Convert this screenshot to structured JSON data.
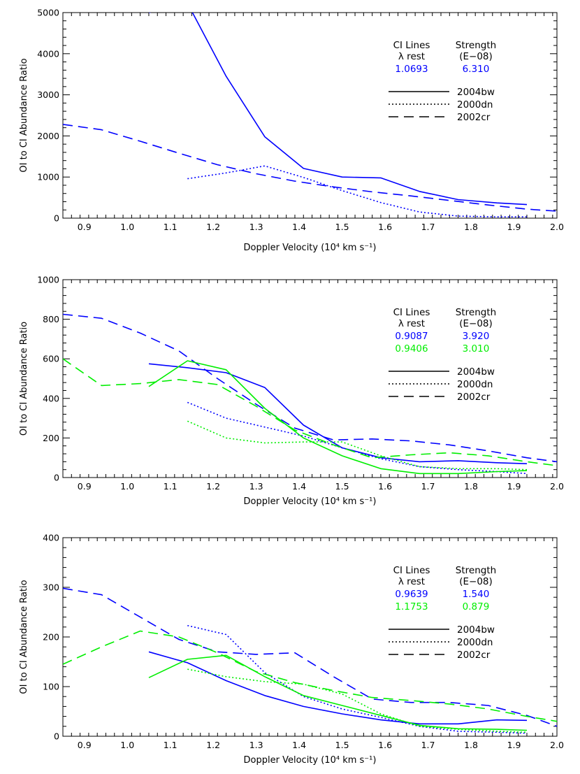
{
  "chart_data": [
    {
      "type": "line",
      "xlabel": "Doppler Velocity (10⁴ km s⁻¹)",
      "ylabel": "OI to CI Abundance Ratio",
      "xlim": [
        0.85,
        2.0
      ],
      "ylim": [
        0,
        5000
      ],
      "xticks": [
        "0.9",
        "1.0",
        "1.1",
        "1.2",
        "1.3",
        "1.4",
        "1.5",
        "1.6",
        "1.7",
        "1.8",
        "1.9",
        "2.0"
      ],
      "yticks": [
        "0",
        "1000",
        "2000",
        "3000",
        "4000",
        "5000"
      ],
      "legend": {
        "header": [
          "CI Lines",
          "Strength"
        ],
        "subheader": [
          "λ rest",
          "(E−08)"
        ],
        "lines": [
          {
            "wavelength": "1.0693",
            "strength": "6.310",
            "color": "#0000ff"
          }
        ],
        "styles": [
          {
            "label": "2004bw",
            "dash": "solid"
          },
          {
            "label": "2000dn",
            "dash": "dotted"
          },
          {
            "label": "2002cr",
            "dash": "dashed"
          }
        ]
      },
      "series": [
        {
          "color": "#0000ff",
          "dash": "solid",
          "x": [
            1.05,
            1.14,
            1.23,
            1.32,
            1.41,
            1.5,
            1.59,
            1.68,
            1.77,
            1.86,
            1.93
          ],
          "y": [
            5000,
            5230,
            3450,
            1980,
            1210,
            1000,
            980,
            650,
            450,
            370,
            330
          ]
        },
        {
          "color": "#0000ff",
          "dash": "dotted",
          "x": [
            1.14,
            1.23,
            1.32,
            1.41,
            1.5,
            1.59,
            1.68,
            1.77,
            1.86,
            1.93
          ],
          "y": [
            960,
            1100,
            1270,
            990,
            670,
            380,
            150,
            50,
            30,
            30
          ]
        },
        {
          "color": "#0000ff",
          "dash": "dashed",
          "x": [
            0.85,
            0.94,
            1.03,
            1.12,
            1.21,
            1.3,
            1.39,
            1.48,
            1.57,
            1.66,
            1.75,
            1.84,
            1.93,
            2.0
          ],
          "y": [
            2280,
            2150,
            1870,
            1580,
            1300,
            1080,
            900,
            760,
            640,
            540,
            430,
            320,
            220,
            170
          ]
        }
      ]
    },
    {
      "type": "line",
      "xlabel": "Doppler Velocity (10⁴ km s⁻¹)",
      "ylabel": "OI to CI Abundance Ratio",
      "xlim": [
        0.85,
        2.0
      ],
      "ylim": [
        0,
        1000
      ],
      "xticks": [
        "0.9",
        "1.0",
        "1.1",
        "1.2",
        "1.3",
        "1.4",
        "1.5",
        "1.6",
        "1.7",
        "1.8",
        "1.9",
        "2.0"
      ],
      "yticks": [
        "0",
        "200",
        "400",
        "600",
        "800",
        "1000"
      ],
      "legend": {
        "header": [
          "CI Lines",
          "Strength"
        ],
        "subheader": [
          "λ rest",
          "(E−08)"
        ],
        "lines": [
          {
            "wavelength": "0.9087",
            "strength": "3.920",
            "color": "#0000ff"
          },
          {
            "wavelength": "0.9406",
            "strength": "3.010",
            "color": "#00ee00"
          }
        ],
        "styles": [
          {
            "label": "2004bw",
            "dash": "solid"
          },
          {
            "label": "2000dn",
            "dash": "dotted"
          },
          {
            "label": "2002cr",
            "dash": "dashed"
          }
        ]
      },
      "series": [
        {
          "color": "#0000ff",
          "dash": "solid",
          "x": [
            1.05,
            1.14,
            1.23,
            1.32,
            1.41,
            1.5,
            1.59,
            1.68,
            1.77,
            1.86,
            1.93
          ],
          "y": [
            575,
            555,
            530,
            455,
            265,
            150,
            100,
            80,
            85,
            75,
            70
          ]
        },
        {
          "color": "#0000ff",
          "dash": "dotted",
          "x": [
            1.14,
            1.23,
            1.32,
            1.41,
            1.5,
            1.59,
            1.68,
            1.77,
            1.86,
            1.93
          ],
          "y": [
            380,
            300,
            255,
            210,
            150,
            95,
            55,
            40,
            30,
            20
          ]
        },
        {
          "color": "#0000ff",
          "dash": "dashed",
          "x": [
            0.85,
            0.94,
            1.03,
            1.12,
            1.21,
            1.3,
            1.39,
            1.48,
            1.57,
            1.66,
            1.75,
            1.84,
            1.93,
            2.0
          ],
          "y": [
            825,
            805,
            730,
            640,
            500,
            370,
            250,
            190,
            195,
            185,
            165,
            135,
            100,
            80
          ]
        },
        {
          "color": "#00ee00",
          "dash": "solid",
          "x": [
            1.05,
            1.14,
            1.23,
            1.32,
            1.41,
            1.5,
            1.59,
            1.68,
            1.77,
            1.86,
            1.93
          ],
          "y": [
            460,
            590,
            545,
            350,
            200,
            110,
            45,
            20,
            20,
            30,
            35
          ]
        },
        {
          "color": "#00ee00",
          "dash": "dotted",
          "x": [
            1.14,
            1.23,
            1.32,
            1.41,
            1.5,
            1.59,
            1.68,
            1.77,
            1.86,
            1.93
          ],
          "y": [
            285,
            200,
            175,
            180,
            180,
            110,
            55,
            45,
            45,
            40
          ]
        },
        {
          "color": "#00ee00",
          "dash": "dashed",
          "x": [
            0.85,
            0.94,
            1.03,
            1.12,
            1.21,
            1.3,
            1.39,
            1.48,
            1.57,
            1.66,
            1.75,
            1.84,
            1.93,
            2.0
          ],
          "y": [
            600,
            465,
            475,
            495,
            470,
            360,
            240,
            165,
            100,
            115,
            125,
            110,
            80,
            60
          ]
        }
      ]
    },
    {
      "type": "line",
      "xlabel": "Doppler Velocity (10⁴ km s⁻¹)",
      "ylabel": "OI to CI Abundance Ratio",
      "xlim": [
        0.85,
        2.0
      ],
      "ylim": [
        0,
        400
      ],
      "xticks": [
        "0.9",
        "1.0",
        "1.1",
        "1.2",
        "1.3",
        "1.4",
        "1.5",
        "1.6",
        "1.7",
        "1.8",
        "1.9",
        "2.0"
      ],
      "yticks": [
        "0",
        "100",
        "200",
        "300",
        "400"
      ],
      "legend": {
        "header": [
          "CI Lines",
          "Strength"
        ],
        "subheader": [
          "λ rest",
          "(E−08)"
        ],
        "lines": [
          {
            "wavelength": "0.9639",
            "strength": "1.540",
            "color": "#0000ff"
          },
          {
            "wavelength": "1.1753",
            "strength": "0.879",
            "color": "#00ee00"
          }
        ],
        "styles": [
          {
            "label": "2004bw",
            "dash": "solid"
          },
          {
            "label": "2000dn",
            "dash": "dotted"
          },
          {
            "label": "2002cr",
            "dash": "dashed"
          }
        ]
      },
      "series": [
        {
          "color": "#0000ff",
          "dash": "solid",
          "x": [
            1.05,
            1.14,
            1.23,
            1.32,
            1.41,
            1.5,
            1.59,
            1.68,
            1.77,
            1.86,
            1.93
          ],
          "y": [
            170,
            148,
            112,
            82,
            60,
            45,
            33,
            25,
            25,
            33,
            32
          ]
        },
        {
          "color": "#0000ff",
          "dash": "dotted",
          "x": [
            1.14,
            1.23,
            1.32,
            1.41,
            1.5,
            1.59,
            1.68,
            1.77,
            1.86,
            1.93
          ],
          "y": [
            223,
            205,
            128,
            80,
            55,
            38,
            20,
            10,
            8,
            6
          ]
        },
        {
          "color": "#0000ff",
          "dash": "dashed",
          "x": [
            0.85,
            0.94,
            1.03,
            1.12,
            1.21,
            1.3,
            1.39,
            1.48,
            1.57,
            1.66,
            1.75,
            1.84,
            1.93,
            2.0
          ],
          "y": [
            298,
            285,
            240,
            195,
            170,
            165,
            168,
            120,
            75,
            68,
            68,
            62,
            42,
            20
          ]
        },
        {
          "color": "#00ee00",
          "dash": "solid",
          "x": [
            1.05,
            1.14,
            1.23,
            1.32,
            1.41,
            1.5,
            1.59,
            1.68,
            1.77,
            1.86,
            1.93
          ],
          "y": [
            118,
            155,
            163,
            120,
            82,
            62,
            42,
            22,
            15,
            14,
            12
          ]
        },
        {
          "color": "#00ee00",
          "dash": "dotted",
          "x": [
            1.14,
            1.23,
            1.32,
            1.41,
            1.5,
            1.59,
            1.68,
            1.77,
            1.86,
            1.93
          ],
          "y": [
            135,
            120,
            110,
            105,
            85,
            45,
            20,
            14,
            10,
            8
          ]
        },
        {
          "color": "#00ee00",
          "dash": "dashed",
          "x": [
            0.85,
            0.94,
            1.03,
            1.12,
            1.21,
            1.3,
            1.39,
            1.48,
            1.57,
            1.66,
            1.75,
            1.84,
            1.93,
            2.0
          ],
          "y": [
            145,
            180,
            212,
            200,
            168,
            130,
            108,
            92,
            78,
            72,
            65,
            55,
            40,
            30
          ]
        }
      ]
    }
  ]
}
